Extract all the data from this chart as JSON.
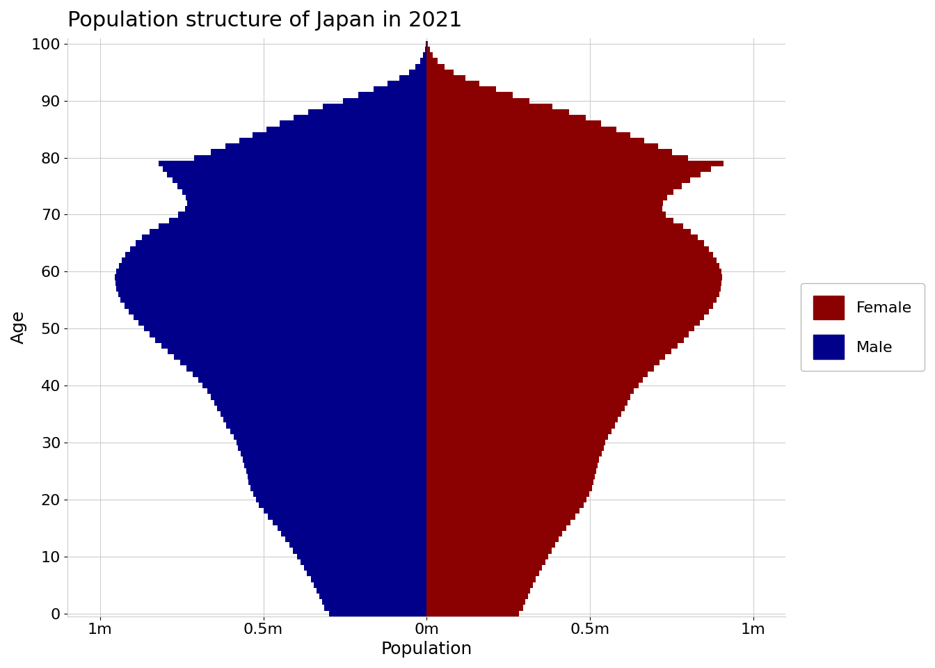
{
  "title": "Population structure of Japan in 2021",
  "xlabel": "Population",
  "ylabel": "Age",
  "male_color": "#00008B",
  "female_color": "#8B0000",
  "background_color": "#FFFFFF",
  "grid_color": "#CCCCCC",
  "ylim": [
    -0.5,
    101
  ],
  "xlim": [
    -1100000,
    1100000
  ],
  "xticks": [
    -1000000,
    -500000,
    0,
    500000,
    1000000
  ],
  "xticklabels": [
    "1m",
    "0.5m",
    "0m",
    "0.5m",
    "1m"
  ],
  "yticks": [
    0,
    10,
    20,
    30,
    40,
    50,
    60,
    70,
    80,
    90,
    100
  ],
  "title_fontsize": 22,
  "label_fontsize": 18,
  "tick_fontsize": 16,
  "legend_fontsize": 16,
  "male": [
    298000,
    313000,
    320000,
    328000,
    336000,
    345000,
    355000,
    366000,
    376000,
    387000,
    397000,
    409000,
    421000,
    432000,
    445000,
    457000,
    471000,
    486000,
    499000,
    513000,
    522000,
    531000,
    540000,
    546000,
    549000,
    553000,
    558000,
    563000,
    570000,
    577000,
    583000,
    591000,
    602000,
    613000,
    622000,
    632000,
    641000,
    651000,
    661000,
    672000,
    686000,
    700000,
    716000,
    736000,
    754000,
    773000,
    793000,
    813000,
    832000,
    848000,
    865000,
    882000,
    897000,
    912000,
    926000,
    937000,
    945000,
    950000,
    953000,
    954000,
    950000,
    943000,
    933000,
    922000,
    909000,
    892000,
    872000,
    848000,
    820000,
    788000,
    760000,
    740000,
    733000,
    738000,
    749000,
    763000,
    779000,
    795000,
    808000,
    820000,
    712000,
    660000,
    617000,
    573000,
    532000,
    491000,
    450000,
    408000,
    362000,
    318000,
    255000,
    209000,
    163000,
    120000,
    83000,
    54000,
    34000,
    19000,
    10000,
    5000,
    2000
  ],
  "female": [
    282000,
    296000,
    303000,
    310000,
    317000,
    325000,
    335000,
    344000,
    353000,
    363000,
    372000,
    383000,
    394000,
    404000,
    416000,
    427000,
    441000,
    455000,
    468000,
    481000,
    490000,
    499000,
    507000,
    512000,
    515000,
    519000,
    524000,
    529000,
    536000,
    542000,
    548000,
    556000,
    566000,
    576000,
    586000,
    596000,
    606000,
    615000,
    624000,
    635000,
    649000,
    663000,
    678000,
    697000,
    713000,
    730000,
    749000,
    769000,
    788000,
    803000,
    819000,
    836000,
    850000,
    864000,
    877000,
    888000,
    896000,
    901000,
    904000,
    905000,
    902000,
    896000,
    888000,
    877000,
    864000,
    849000,
    831000,
    809000,
    785000,
    756000,
    733000,
    721000,
    723000,
    736000,
    757000,
    781000,
    808000,
    839000,
    872000,
    909000,
    800000,
    752000,
    710000,
    666000,
    624000,
    581000,
    535000,
    488000,
    437000,
    386000,
    314000,
    263000,
    212000,
    161000,
    118000,
    82000,
    54000,
    33000,
    19000,
    10000,
    4000
  ]
}
